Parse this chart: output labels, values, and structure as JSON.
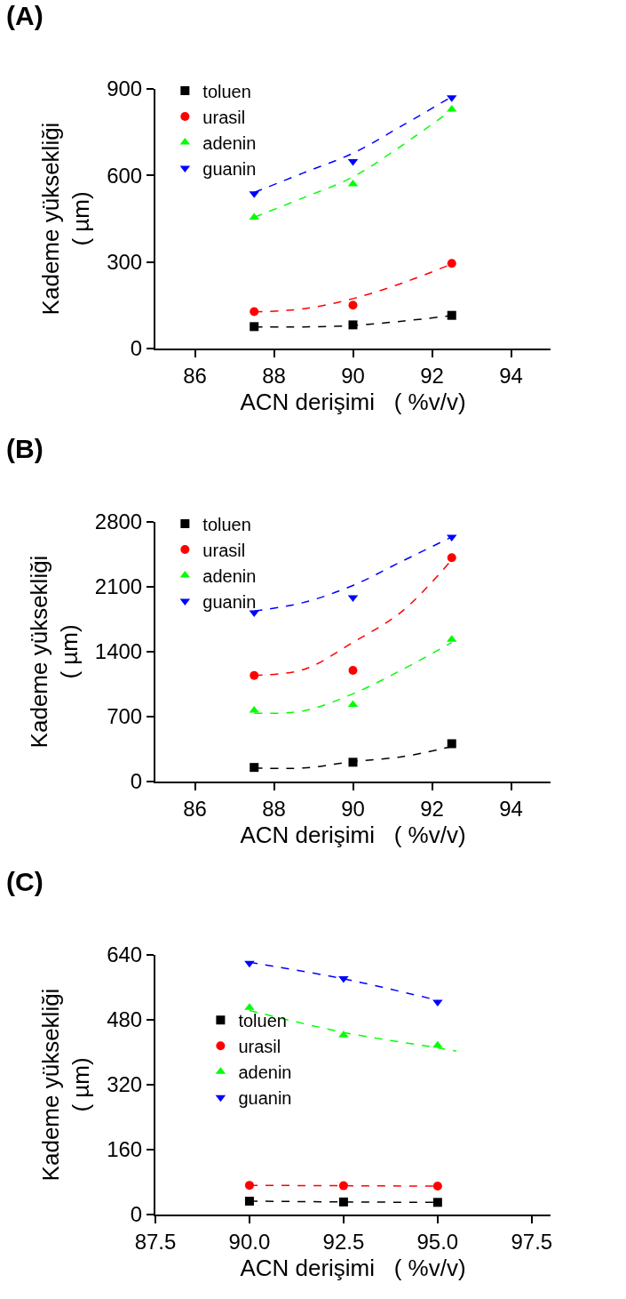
{
  "chart_data": [
    {
      "type": "scatter",
      "title": "(A)",
      "xlabel": "ACN derişimi   ( %v/v)",
      "ylabel": "Kademe yüksekliği\n( µm)",
      "x": [
        87.5,
        90,
        92.5
      ],
      "xlim": [
        85,
        95
      ],
      "xticks": [
        86,
        88,
        90,
        92,
        94
      ],
      "ylim": [
        0,
        900
      ],
      "yticks": [
        0,
        300,
        600,
        900
      ],
      "grid": false,
      "legend": "top left",
      "series": [
        {
          "name": "toluen",
          "color": "#000000",
          "marker": "square",
          "values": [
            76,
            82,
            115
          ]
        },
        {
          "name": "urasil",
          "color": "#ff0000",
          "marker": "circle",
          "values": [
            128,
            150,
            295
          ]
        },
        {
          "name": "adenin",
          "color": "#00ff00",
          "marker": "triangle",
          "values": [
            455,
            570,
            829
          ]
        },
        {
          "name": "guanin",
          "color": "#0000ff",
          "marker": "triangle-down",
          "values": [
            537,
            649,
            870
          ]
        },
        {
          "type": "line",
          "line_style": "dashed",
          "color": "#000000",
          "x": [
            87.5,
            88.75,
            90,
            91.25,
            92.5
          ],
          "values": [
            75,
            75,
            80,
            95,
            114
          ]
        },
        {
          "type": "line",
          "line_style": "dashed",
          "color": "#ff0000",
          "x": [
            87.5,
            88.75,
            90,
            91.25,
            92.5
          ],
          "values": [
            127,
            138,
            173,
            227,
            293
          ]
        },
        {
          "type": "line",
          "line_style": "dashed",
          "color": "#00ff00",
          "x": [
            87.5,
            88.75,
            90,
            91.25,
            92.5
          ],
          "values": [
            455,
            523,
            595,
            705,
            827
          ]
        },
        {
          "type": "line",
          "line_style": "dashed",
          "color": "#0000ff",
          "x": [
            87.5,
            88.75,
            90,
            91.25,
            92.5
          ],
          "values": [
            541,
            609,
            677,
            773,
            873
          ]
        }
      ]
    },
    {
      "type": "scatter",
      "title": "(B)",
      "xlabel": "ACN derişimi   ( %v/v)",
      "ylabel": "Kademe yüksekliği\n( µm)",
      "x": [
        87.5,
        90,
        92.5
      ],
      "xlim": [
        85,
        95
      ],
      "xticks": [
        86,
        88,
        90,
        92,
        94
      ],
      "ylim": [
        0,
        2800
      ],
      "yticks": [
        0,
        700,
        1400,
        2100,
        2800
      ],
      "grid": false,
      "legend": "top left",
      "series": [
        {
          "name": "toluen",
          "color": "#000000",
          "marker": "square",
          "values": [
            152,
            208,
            408
          ]
        },
        {
          "name": "urasil",
          "color": "#ff0000",
          "marker": "circle",
          "values": [
            1143,
            1198,
            2414
          ]
        },
        {
          "name": "adenin",
          "color": "#00ff00",
          "marker": "triangle",
          "values": [
            768,
            829,
            1531
          ]
        },
        {
          "name": "guanin",
          "color": "#0000ff",
          "marker": "triangle-down",
          "values": [
            1823,
            1986,
            2637
          ]
        },
        {
          "type": "line",
          "line_style": "dashed",
          "color": "#000000",
          "x": [
            87.5,
            88.75,
            90,
            91.25,
            92.5
          ],
          "values": [
            146,
            146,
            214,
            269,
            377
          ]
        },
        {
          "type": "line",
          "line_style": "dashed",
          "color": "#ff0000",
          "x": [
            87.5,
            88.75,
            90,
            91.25,
            92.5
          ],
          "values": [
            1146,
            1208,
            1500,
            1838,
            2392
          ]
        },
        {
          "type": "line",
          "line_style": "dashed",
          "color": "#00ff00",
          "x": [
            87.5,
            88.75,
            90,
            91.25,
            92.5
          ],
          "values": [
            737,
            762,
            946,
            1208,
            1500
          ]
        },
        {
          "type": "line",
          "line_style": "dashed",
          "color": "#0000ff",
          "x": [
            87.5,
            88.75,
            90,
            91.25,
            92.5
          ],
          "values": [
            1838,
            1931,
            2115,
            2377,
            2638
          ]
        }
      ]
    },
    {
      "type": "scatter",
      "title": "(C)",
      "xlabel": "ACN derişimi   ( %v/v)",
      "ylabel": "Kademe yüksekliği\n( µm)",
      "x": [
        90,
        92.5,
        95
      ],
      "xlim": [
        87.5,
        98
      ],
      "xticks": [
        {
          "value": 87.5,
          "label": "87.5"
        },
        {
          "value": 90,
          "label": "90.0"
        },
        {
          "value": 92.5,
          "label": "92.5"
        },
        {
          "value": 95,
          "label": "95.0"
        },
        {
          "value": 97.5,
          "label": "97.5"
        }
      ],
      "ylim": [
        0,
        640
      ],
      "yticks": [
        0,
        160,
        320,
        480,
        640
      ],
      "grid": false,
      "legend": "left",
      "series": [
        {
          "name": "toluen",
          "color": "#000000",
          "marker": "square",
          "values": [
            33,
            31,
            30
          ]
        },
        {
          "name": "urasil",
          "color": "#ff0000",
          "marker": "circle",
          "values": [
            72,
            71,
            70
          ]
        },
        {
          "name": "adenin",
          "color": "#00ff00",
          "marker": "triangle",
          "values": [
            510,
            442,
            417
          ]
        },
        {
          "name": "guanin",
          "color": "#0000ff",
          "marker": "triangle-down",
          "values": [
            620,
            582,
            524
          ]
        },
        {
          "type": "line",
          "line_style": "dashed",
          "color": "#000000",
          "x": [
            90,
            92.5,
            95
          ],
          "values": [
            33,
            31,
            30
          ]
        },
        {
          "type": "line",
          "line_style": "dashed",
          "color": "#ff0000",
          "x": [
            90,
            92.5,
            95
          ],
          "values": [
            72,
            71,
            70
          ]
        },
        {
          "type": "line",
          "line_style": "dashed",
          "color": "#00ff00",
          "x": [
            90,
            92.5,
            95,
            95.5
          ],
          "values": [
            503,
            449,
            411,
            403
          ]
        },
        {
          "type": "line",
          "line_style": "dashed",
          "color": "#0000ff",
          "x": [
            90,
            92.5,
            95
          ],
          "values": [
            622,
            581,
            528
          ]
        }
      ]
    }
  ]
}
